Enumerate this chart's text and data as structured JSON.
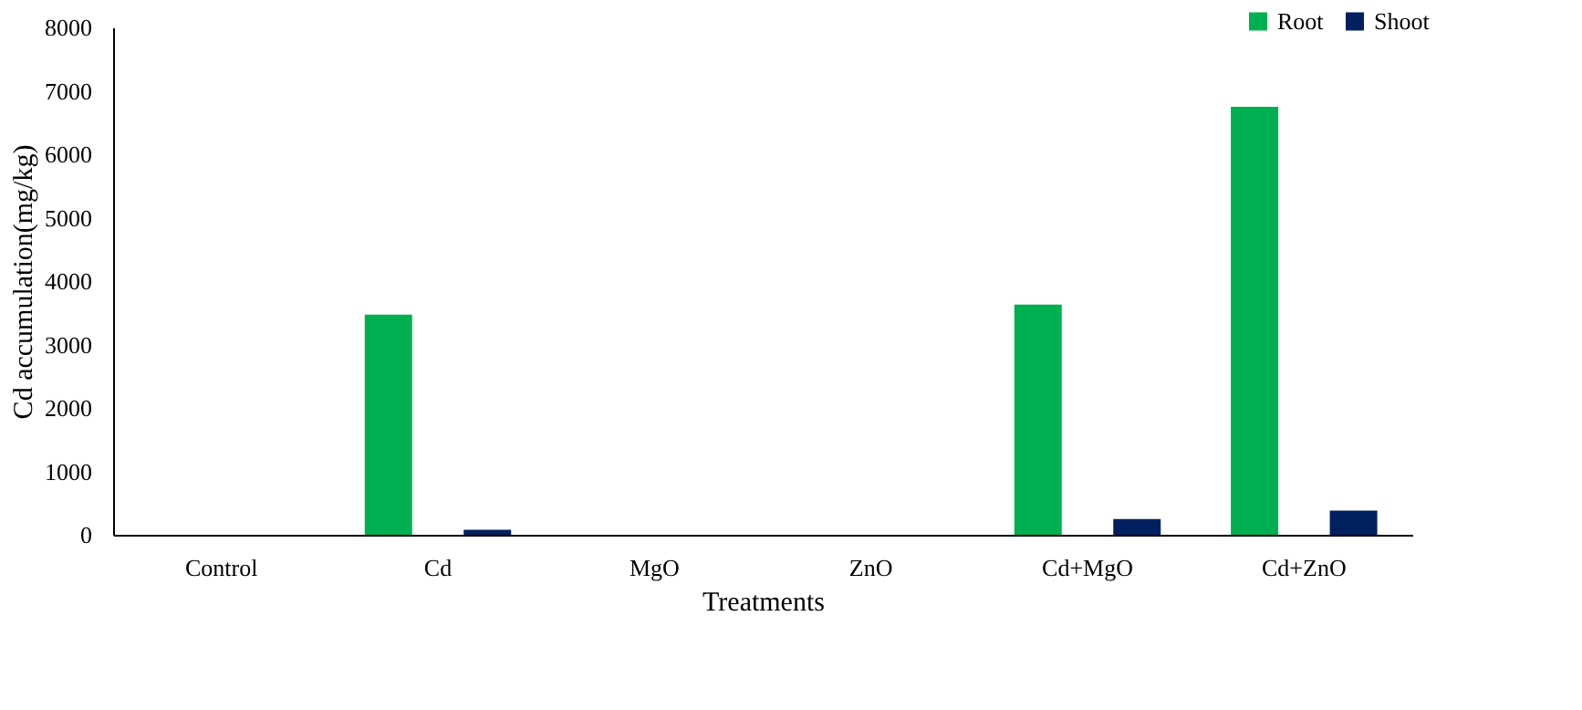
{
  "chart_data": {
    "type": "bar",
    "xlabel": "Treatments",
    "ylabel": "Cd accumulation(mg/kg)",
    "categories": [
      "Control",
      "Cd",
      "MgO",
      "ZnO",
      "Cd+MgO",
      "Cd+ZnO"
    ],
    "series": [
      {
        "name": "Root",
        "color": "#00b050",
        "values": [
          0,
          3470,
          0,
          0,
          3630,
          6750
        ]
      },
      {
        "name": "Shoot",
        "color": "#002060",
        "values": [
          0,
          80,
          0,
          0,
          250,
          380
        ]
      }
    ],
    "ylim": [
      0,
      8000
    ],
    "yticks": [
      0,
      1000,
      2000,
      3000,
      4000,
      5000,
      6000,
      7000,
      8000
    ],
    "grid": false,
    "legend": "top right"
  }
}
